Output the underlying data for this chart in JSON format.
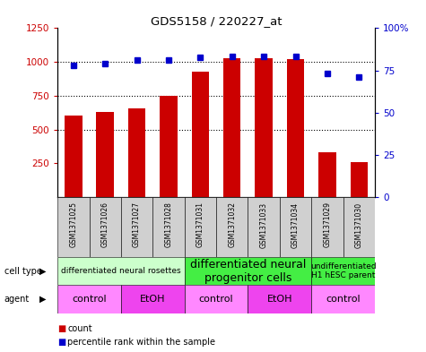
{
  "title": "GDS5158 / 220227_at",
  "samples": [
    "GSM1371025",
    "GSM1371026",
    "GSM1371027",
    "GSM1371028",
    "GSM1371031",
    "GSM1371032",
    "GSM1371033",
    "GSM1371034",
    "GSM1371029",
    "GSM1371030"
  ],
  "counts": [
    605,
    630,
    655,
    750,
    925,
    1030,
    1025,
    1020,
    335,
    260
  ],
  "percentiles": [
    78,
    79,
    81,
    81,
    82.5,
    83.5,
    83.5,
    83.5,
    73,
    71
  ],
  "ylim_left": [
    0,
    1250
  ],
  "ylim_right": [
    0,
    100
  ],
  "yticks_left": [
    250,
    500,
    750,
    1000,
    1250
  ],
  "yticks_right": [
    0,
    25,
    50,
    75,
    100
  ],
  "bar_color": "#cc0000",
  "dot_color": "#0000cc",
  "cell_type_groups": [
    {
      "label": "differentiated neural rosettes",
      "start": 0,
      "end": 4,
      "color": "#ccffcc",
      "fontsize": 6.5
    },
    {
      "label": "differentiated neural\nprogenitor cells",
      "start": 4,
      "end": 8,
      "color": "#44ee44",
      "fontsize": 9
    },
    {
      "label": "undifferentiated\nH1 hESC parent",
      "start": 8,
      "end": 10,
      "color": "#44ee44",
      "fontsize": 6.5
    }
  ],
  "agent_groups": [
    {
      "label": "control",
      "start": 0,
      "end": 2,
      "color": "#ff88ff"
    },
    {
      "label": "EtOH",
      "start": 2,
      "end": 4,
      "color": "#ee44ee"
    },
    {
      "label": "control",
      "start": 4,
      "end": 6,
      "color": "#ff88ff"
    },
    {
      "label": "EtOH",
      "start": 6,
      "end": 8,
      "color": "#ee44ee"
    },
    {
      "label": "control",
      "start": 8,
      "end": 10,
      "color": "#ff88ff"
    }
  ],
  "grid_dotted_values": [
    500,
    750,
    1000
  ],
  "bar_bottom": 0
}
